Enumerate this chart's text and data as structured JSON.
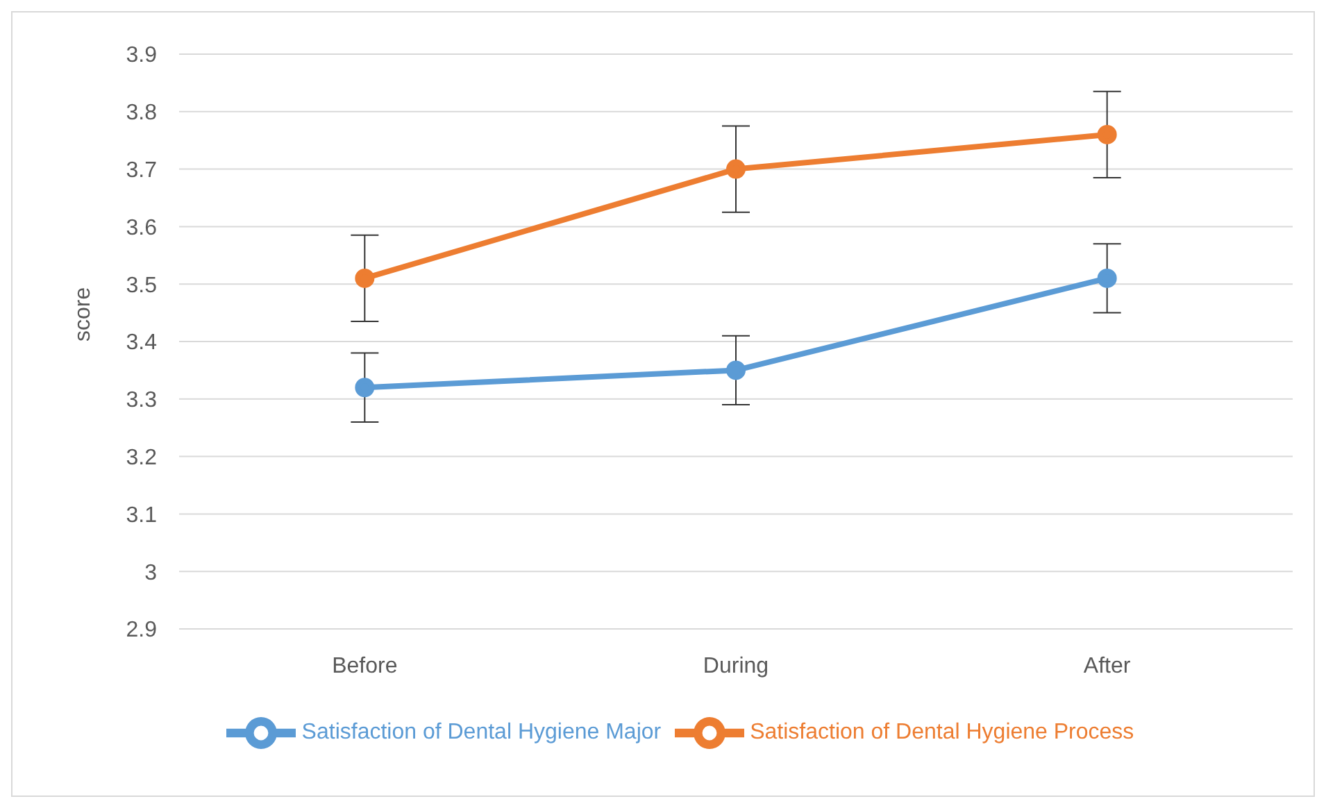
{
  "chart_data": {
    "type": "line",
    "ylabel": "score",
    "categories": [
      "Before",
      "During",
      "After"
    ],
    "series": [
      {
        "name": "Satisfaction of Dental Hygiene Major",
        "color": "#5b9bd5",
        "values": [
          3.32,
          3.35,
          3.51
        ],
        "errors": [
          0.06,
          0.06,
          0.06
        ]
      },
      {
        "name": "Satisfaction of Dental Hygiene Process",
        "color": "#ed7d31",
        "values": [
          3.51,
          3.7,
          3.76
        ],
        "errors": [
          0.075,
          0.075,
          0.075
        ]
      }
    ],
    "ylim": [
      2.9,
      3.9
    ],
    "yticks": [
      2.9,
      3,
      3.1,
      3.2,
      3.3,
      3.4,
      3.5,
      3.6,
      3.7,
      3.8,
      3.9
    ],
    "grid": "y",
    "legend": "bottom",
    "marker": "circle"
  }
}
